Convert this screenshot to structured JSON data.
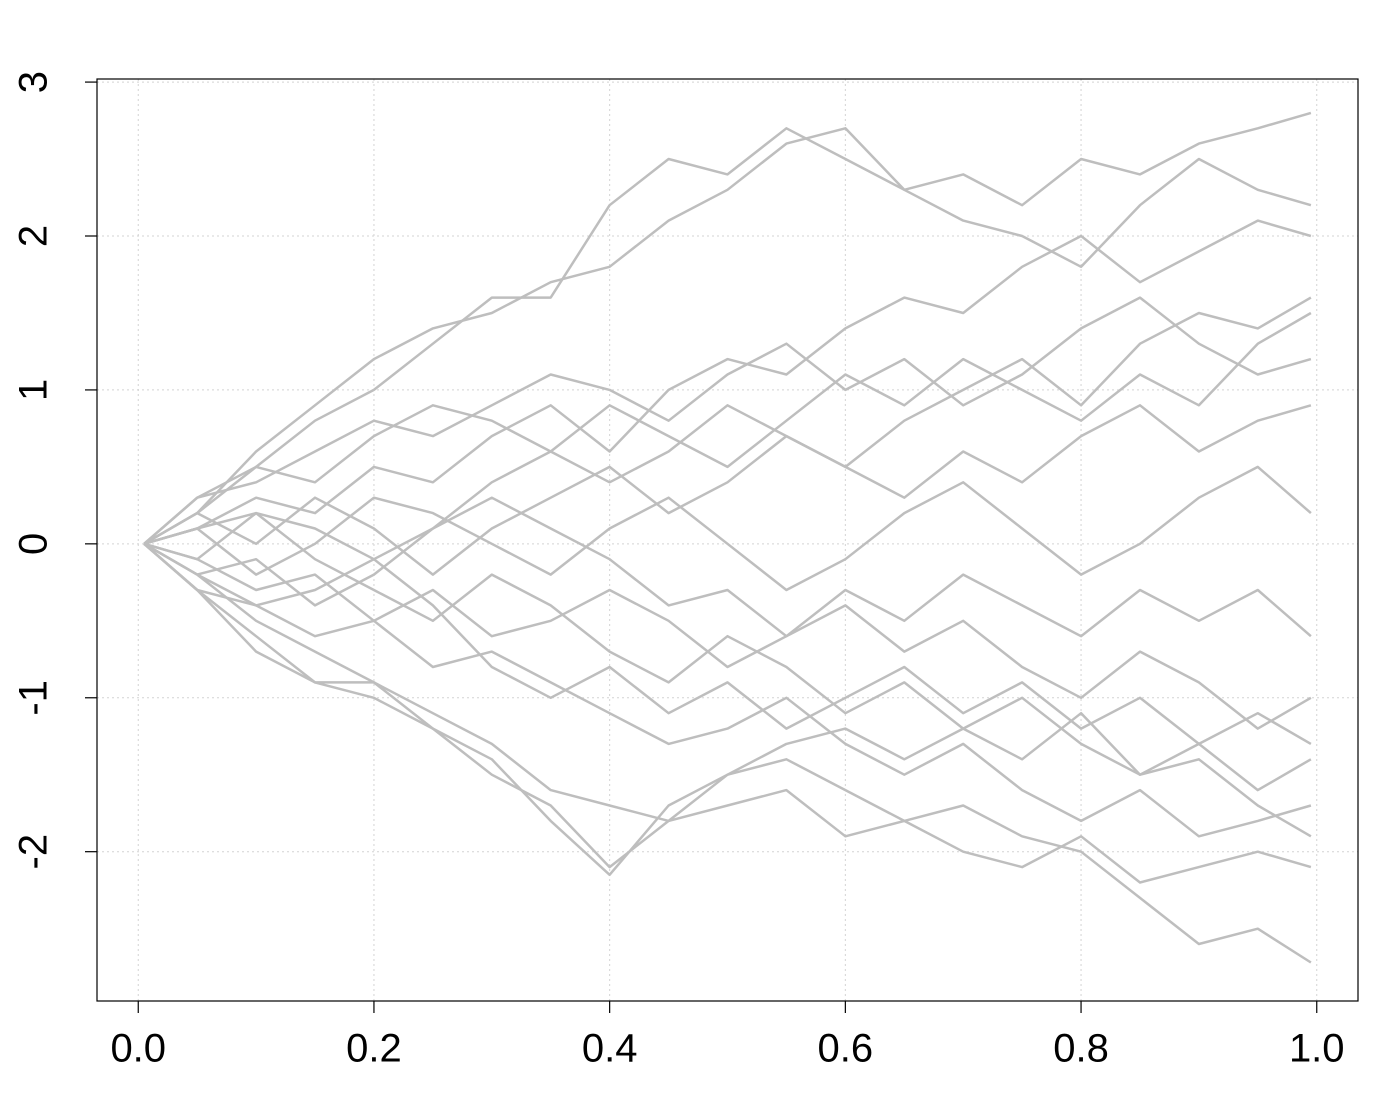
{
  "chart_data": {
    "type": "line",
    "color": "#bebebe",
    "grid": true,
    "xlim": [
      -0.035,
      1.035
    ],
    "ylim": [
      -2.97,
      3.02
    ],
    "xticks": [
      {
        "value": 0,
        "label": "0.0"
      },
      0.2,
      0.4,
      0.6,
      0.8,
      {
        "value": 1,
        "label": "1.0"
      }
    ],
    "yticks": [
      -2,
      -1,
      0,
      1,
      2,
      3
    ],
    "x": [
      0.005,
      0.05,
      0.1,
      0.15,
      0.2,
      0.25,
      0.3,
      0.35,
      0.4,
      0.45,
      0.5,
      0.55,
      0.6,
      0.65,
      0.7,
      0.75,
      0.8,
      0.85,
      0.9,
      0.95,
      0.995
    ],
    "series": [
      {
        "values": [
          0,
          0.3,
          0.5,
          0.8,
          1.0,
          1.3,
          1.6,
          1.6,
          2.2,
          2.5,
          2.4,
          2.7,
          2.5,
          2.3,
          2.4,
          2.2,
          2.5,
          2.4,
          2.6,
          2.7,
          2.8
        ]
      },
      {
        "values": [
          0,
          0.2,
          0.6,
          0.9,
          1.2,
          1.4,
          1.5,
          1.7,
          1.8,
          2.1,
          2.3,
          2.6,
          2.7,
          2.3,
          2.1,
          2.0,
          1.8,
          2.2,
          2.5,
          2.3,
          2.2
        ]
      },
      {
        "values": [
          0,
          -0.3,
          -0.6,
          -0.9,
          -1.0,
          -1.2,
          -1.5,
          -1.7,
          -2.1,
          -1.8,
          -1.5,
          -1.4,
          -1.6,
          -1.8,
          -1.7,
          -1.9,
          -2.0,
          -2.3,
          -2.6,
          -2.5,
          -2.72
        ]
      },
      {
        "values": [
          0,
          -0.2,
          -0.5,
          -0.7,
          -0.9,
          -1.1,
          -1.3,
          -1.6,
          -1.7,
          -1.8,
          -1.7,
          -1.6,
          -1.9,
          -1.8,
          -2.0,
          -2.1,
          -1.9,
          -2.2,
          -2.1,
          -2.0,
          -2.1
        ]
      },
      {
        "values": [
          0,
          -0.3,
          -0.7,
          -0.9,
          -0.9,
          -1.2,
          -1.4,
          -1.8,
          -2.15,
          -1.7,
          -1.5,
          -1.3,
          -1.2,
          -1.4,
          -1.2,
          -1.0,
          -1.3,
          -1.5,
          -1.4,
          -1.7,
          -1.9
        ]
      },
      {
        "values": [
          0,
          0.1,
          0.3,
          0.2,
          0.5,
          0.4,
          0.7,
          0.9,
          0.6,
          1.0,
          1.2,
          1.1,
          1.4,
          1.6,
          1.5,
          1.8,
          2.0,
          1.7,
          1.9,
          2.1,
          2.0
        ]
      },
      {
        "values": [
          0,
          0.2,
          0.0,
          0.3,
          0.1,
          -0.2,
          0.1,
          0.3,
          0.5,
          0.2,
          0.4,
          0.7,
          0.5,
          0.8,
          1.0,
          1.2,
          0.9,
          1.3,
          1.5,
          1.4,
          1.6
        ]
      },
      {
        "values": [
          0,
          -0.1,
          0.2,
          -0.1,
          -0.3,
          -0.5,
          -0.2,
          -0.4,
          -0.7,
          -0.9,
          -0.6,
          -0.8,
          -1.1,
          -0.9,
          -1.2,
          -1.4,
          -1.1,
          -1.5,
          -1.3,
          -1.6,
          -1.4
        ]
      },
      {
        "values": [
          0,
          0.1,
          -0.2,
          0.0,
          0.3,
          0.2,
          0.0,
          -0.2,
          0.1,
          0.3,
          0.0,
          -0.3,
          -0.1,
          0.2,
          0.4,
          0.1,
          -0.2,
          0.0,
          0.3,
          0.5,
          0.2
        ]
      },
      {
        "values": [
          0,
          -0.2,
          -0.1,
          -0.4,
          -0.2,
          0.1,
          0.3,
          0.1,
          -0.1,
          -0.4,
          -0.3,
          -0.6,
          -0.4,
          -0.7,
          -0.5,
          -0.8,
          -1.0,
          -0.7,
          -0.9,
          -1.2,
          -1.0
        ]
      },
      {
        "values": [
          0,
          0.3,
          0.4,
          0.6,
          0.8,
          0.7,
          0.9,
          1.1,
          1.0,
          0.8,
          1.1,
          1.3,
          1.0,
          1.2,
          0.9,
          1.1,
          1.4,
          1.6,
          1.3,
          1.1,
          1.2
        ]
      },
      {
        "values": [
          0,
          -0.3,
          -0.4,
          -0.6,
          -0.5,
          -0.8,
          -0.7,
          -0.9,
          -1.1,
          -1.3,
          -1.2,
          -1.0,
          -1.3,
          -1.5,
          -1.3,
          -1.6,
          -1.8,
          -1.6,
          -1.9,
          -1.8,
          -1.7
        ]
      },
      {
        "values": [
          0,
          0.1,
          0.2,
          0.1,
          -0.1,
          0.1,
          0.4,
          0.6,
          0.4,
          0.6,
          0.9,
          0.7,
          0.5,
          0.3,
          0.6,
          0.4,
          0.7,
          0.9,
          0.6,
          0.8,
          0.9
        ]
      },
      {
        "values": [
          0,
          -0.1,
          -0.3,
          -0.2,
          -0.5,
          -0.3,
          -0.6,
          -0.5,
          -0.3,
          -0.5,
          -0.8,
          -0.6,
          -0.3,
          -0.5,
          -0.2,
          -0.4,
          -0.6,
          -0.3,
          -0.5,
          -0.3,
          -0.6
        ]
      },
      {
        "values": [
          0,
          0.2,
          0.5,
          0.4,
          0.7,
          0.9,
          0.8,
          0.6,
          0.9,
          0.7,
          0.5,
          0.8,
          1.1,
          0.9,
          1.2,
          1.0,
          0.8,
          1.1,
          0.9,
          1.3,
          1.5
        ]
      },
      {
        "values": [
          0,
          -0.2,
          -0.4,
          -0.3,
          -0.1,
          -0.4,
          -0.8,
          -1.0,
          -0.8,
          -1.1,
          -0.9,
          -1.2,
          -1.0,
          -0.8,
          -1.1,
          -0.9,
          -1.2,
          -1.0,
          -1.3,
          -1.1,
          -1.3
        ]
      }
    ]
  }
}
